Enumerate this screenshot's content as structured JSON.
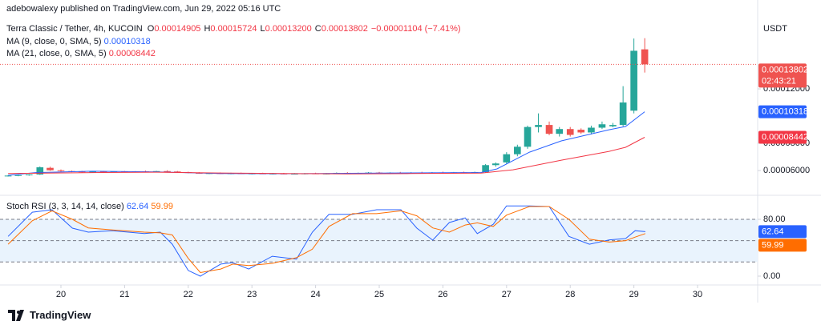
{
  "header": {
    "published": "adebowalexy published on TradingView.com, Jun 29, 2022 05:16 UTC",
    "symbol": "Terra Classic / Tether, 4h, KUCOIN",
    "ohlc": [
      {
        "label": "O",
        "value": "0.00014905"
      },
      {
        "label": "H",
        "value": "0.00015724"
      },
      {
        "label": "L",
        "value": "0.00013200"
      },
      {
        "label": "C",
        "value": "0.00013802"
      }
    ],
    "change": "−0.00001104 (−7.41%)"
  },
  "footer": {
    "brand": "TradingView"
  },
  "chart_data": [
    {
      "type": "candlestick",
      "currency": "USDT",
      "countdown": "02:43:21",
      "up_color": "#26a69a",
      "down_color": "#ef5350",
      "last_price_line": true,
      "xlim": [
        19.043,
        30.944
      ],
      "ylim": [
        4.24e-05,
        0.0001853
      ],
      "yticks": [
        {
          "value": 6e-05,
          "label": "0.00006000"
        },
        {
          "value": 8e-05,
          "label": "0.00008000"
        },
        {
          "value": 0.00012,
          "label": "0.00012000"
        }
      ],
      "x": [
        19.17,
        19.33,
        19.5,
        19.67,
        19.83,
        20,
        20.17,
        20.33,
        20.5,
        20.67,
        20.83,
        21,
        21.17,
        21.33,
        21.5,
        21.67,
        21.83,
        22,
        22.17,
        22.33,
        22.5,
        22.67,
        22.83,
        23,
        23.17,
        23.33,
        23.5,
        23.67,
        23.83,
        24,
        24.17,
        24.33,
        24.5,
        24.67,
        24.83,
        25,
        25.17,
        25.33,
        25.5,
        25.67,
        25.83,
        26,
        26.17,
        26.33,
        26.5,
        26.67,
        26.83,
        27,
        27.17,
        27.33,
        27.5,
        27.67,
        27.83,
        28,
        28.17,
        28.33,
        28.5,
        28.67,
        28.83,
        29,
        29.17
      ],
      "open": [
        5.6e-05,
        5.63e-05,
        5.66e-05,
        5.71e-05,
        6.2e-05,
        6.02e-05,
        5.96e-05,
        5.93e-05,
        5.9e-05,
        5.92e-05,
        5.9e-05,
        5.93e-05,
        5.91e-05,
        5.94e-05,
        5.92e-05,
        5.96e-05,
        5.93e-05,
        5.88e-05,
        5.83e-05,
        5.79e-05,
        5.81e-05,
        5.78e-05,
        5.8e-05,
        5.77e-05,
        5.79e-05,
        5.76e-05,
        5.78e-05,
        5.75e-05,
        5.77e-05,
        5.79e-05,
        5.76e-05,
        5.78e-05,
        5.83e-05,
        5.8e-05,
        5.82e-05,
        5.85e-05,
        5.81e-05,
        5.84e-05,
        5.82e-05,
        5.85e-05,
        5.83e-05,
        5.86e-05,
        5.84e-05,
        5.87e-05,
        5.85e-05,
        5.89e-05,
        6.4e-05,
        6.6e-05,
        7.2e-05,
        7.75e-05,
        9.2e-05,
        9.35e-05,
        8.7e-05,
        9.05e-05,
        9e-05,
        8.8e-05,
        9.15e-05,
        9.25e-05,
        9.35e-05,
        0.000104,
        0.00014905
      ],
      "high": [
        5.66e-05,
        5.68e-05,
        5.74e-05,
        6.3e-05,
        6.28e-05,
        6.08e-05,
        6e-05,
        5.98e-05,
        5.96e-05,
        5.98e-05,
        5.95e-05,
        5.97e-05,
        5.96e-05,
        6e-05,
        5.98e-05,
        6.02e-05,
        5.97e-05,
        5.92e-05,
        5.88e-05,
        5.85e-05,
        5.86e-05,
        5.84e-05,
        5.85e-05,
        5.83e-05,
        5.84e-05,
        5.82e-05,
        5.83e-05,
        5.81e-05,
        5.82e-05,
        5.84e-05,
        5.81e-05,
        5.86e-05,
        5.88e-05,
        5.85e-05,
        5.89e-05,
        5.9e-05,
        5.87e-05,
        5.9e-05,
        5.88e-05,
        5.91e-05,
        5.89e-05,
        5.92e-05,
        5.9e-05,
        5.92e-05,
        5.92e-05,
        6.48e-05,
        6.6e-05,
        7.35e-05,
        7.9e-05,
        9.3e-05,
        0.000102,
        9.6e-05,
        9.2e-05,
        9.2e-05,
        9.1e-05,
        9.3e-05,
        9.6e-05,
        9.5e-05,
        0.000122,
        0.000157,
        0.00015724
      ],
      "low": [
        5.56e-05,
        5.58e-05,
        5.62e-05,
        5.68e-05,
        5.98e-05,
        5.9e-05,
        5.88e-05,
        5.86e-05,
        5.85e-05,
        5.88e-05,
        5.86e-05,
        5.88e-05,
        5.87e-05,
        5.9e-05,
        5.88e-05,
        5.9e-05,
        5.85e-05,
        5.8e-05,
        5.76e-05,
        5.74e-05,
        5.75e-05,
        5.73e-05,
        5.75e-05,
        5.72e-05,
        5.74e-05,
        5.71e-05,
        5.73e-05,
        5.71e-05,
        5.72e-05,
        5.74e-05,
        5.72e-05,
        5.74e-05,
        5.77e-05,
        5.75e-05,
        5.77e-05,
        5.79e-05,
        5.76e-05,
        5.79e-05,
        5.77e-05,
        5.8e-05,
        5.78e-05,
        5.81e-05,
        5.79e-05,
        5.82e-05,
        5.8e-05,
        5.85e-05,
        6.28e-05,
        6.5e-05,
        7.05e-05,
        7.6e-05,
        8.8e-05,
        8.6e-05,
        8.5e-05,
        8.5e-05,
        8.7e-05,
        8.65e-05,
        9.05e-05,
        9.18e-05,
        9.25e-05,
        0.000102,
        0.000132
      ],
      "close": [
        5.63e-05,
        5.66e-05,
        5.71e-05,
        6.24e-05,
        6.02e-05,
        5.96e-05,
        5.93e-05,
        5.9e-05,
        5.92e-05,
        5.9e-05,
        5.93e-05,
        5.91e-05,
        5.94e-05,
        5.92e-05,
        5.96e-05,
        5.93e-05,
        5.88e-05,
        5.83e-05,
        5.79e-05,
        5.81e-05,
        5.78e-05,
        5.8e-05,
        5.77e-05,
        5.79e-05,
        5.76e-05,
        5.78e-05,
        5.75e-05,
        5.77e-05,
        5.79e-05,
        5.76e-05,
        5.78e-05,
        5.83e-05,
        5.8e-05,
        5.82e-05,
        5.85e-05,
        5.81e-05,
        5.84e-05,
        5.82e-05,
        5.85e-05,
        5.83e-05,
        5.86e-05,
        5.84e-05,
        5.87e-05,
        5.85e-05,
        5.89e-05,
        6.4e-05,
        6.52e-05,
        7.2e-05,
        7.75e-05,
        9.2e-05,
        9.35e-05,
        8.7e-05,
        9.05e-05,
        8.62e-05,
        8.8e-05,
        9.15e-05,
        9.4e-05,
        9.35e-05,
        0.00011,
        0.000148,
        0.00013802
      ],
      "overlays": [
        {
          "name": "MA (9, close, 0, SMA, 5)",
          "color": "#2962ff",
          "x": [
            19.17,
            19.6,
            20.5,
            21.5,
            22.5,
            23.5,
            24.5,
            25.5,
            26.6,
            26.85,
            27.36,
            27.86,
            28.61,
            28.87,
            29.17
          ],
          "values": [
            5.65e-05,
            5.85e-05,
            5.95e-05,
            5.9e-05,
            5.78e-05,
            5.77e-05,
            5.8e-05,
            5.83e-05,
            5.86e-05,
            6.12e-05,
            7.35e-05,
            8.18e-05,
            9e-05,
            9.24e-05,
            0.00010318
          ]
        },
        {
          "name": "MA (21, close, 0, SMA, 5)",
          "color": "#f23645",
          "x": [
            19.17,
            20.5,
            21.5,
            22.5,
            23.5,
            24.5,
            25.5,
            26.6,
            27.1,
            27.86,
            28.61,
            28.87,
            29.17
          ],
          "values": [
            5.78e-05,
            5.85e-05,
            5.88e-05,
            5.82e-05,
            5.78e-05,
            5.76e-05,
            5.78e-05,
            5.81e-05,
            6.06e-05,
            6.76e-05,
            7.41e-05,
            7.71e-05,
            8.442e-05
          ]
        }
      ]
    },
    {
      "type": "line",
      "title": "Stoch RSI (3, 3, 14, 14, close)",
      "xlim": [
        19.043,
        30.944
      ],
      "xticks": [
        20,
        21,
        22,
        23,
        24,
        25,
        26,
        27,
        28,
        29,
        30
      ],
      "ylim": [
        -11.3,
        112.7
      ],
      "yticks": [
        {
          "value": 80,
          "label": "80.00"
        },
        {
          "value": 0,
          "label": "0.00"
        }
      ],
      "levels": [
        80,
        50,
        20
      ],
      "band_color": "#e9f3fd",
      "x": [
        19.17,
        19.55,
        19.86,
        20.18,
        20.43,
        20.81,
        21.31,
        21.56,
        21.75,
        22.0,
        22.19,
        22.51,
        22.7,
        22.95,
        23.32,
        23.7,
        23.95,
        24.21,
        24.58,
        24.96,
        25.34,
        25.59,
        25.84,
        26.1,
        26.35,
        26.54,
        26.79,
        27.0,
        27.36,
        27.67,
        27.98,
        28.3,
        28.61,
        28.87,
        29.02,
        29.18
      ],
      "series": [
        {
          "color": "#2962ff",
          "values": [
            56,
            90,
            93.5,
            67.6,
            62,
            64,
            60,
            62,
            45,
            8,
            0,
            17,
            19,
            10,
            28,
            24,
            62,
            87,
            87,
            93.5,
            93.5,
            67.6,
            50.7,
            75.5,
            82,
            60,
            73,
            99,
            99,
            98,
            56,
            45,
            51,
            53,
            64,
            62.64
          ]
        },
        {
          "color": "#ff6d00",
          "values": [
            45,
            78,
            92,
            80,
            68,
            65,
            62,
            61,
            58,
            25,
            5,
            10,
            17,
            15,
            18,
            26,
            38,
            70,
            88,
            88,
            92,
            85,
            68,
            62,
            72,
            75,
            70,
            86,
            98,
            98,
            80,
            52,
            48,
            50,
            55,
            59.99
          ]
        }
      ]
    }
  ]
}
